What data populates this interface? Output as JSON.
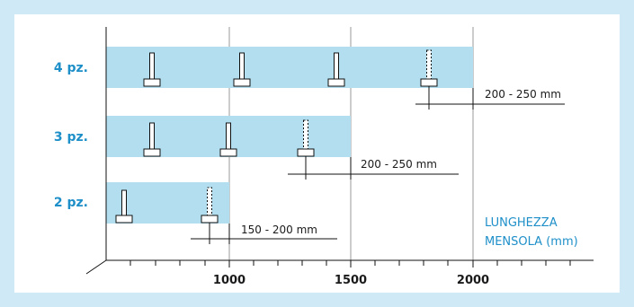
{
  "colors": {
    "background": "#cfe9f6",
    "band": "#b2def0",
    "accent": "#1e8fc8",
    "line": "#111111",
    "grid": "#9a9a9a"
  },
  "axis": {
    "title_line1": "LUNGHEZZA",
    "title_line2": "MENSOLA (mm)",
    "ticks": [
      "1000",
      "1500",
      "2000"
    ]
  },
  "rows": [
    {
      "label": "4 pz.",
      "shelf_length_mm": 2000,
      "brackets": 4,
      "dimension": "200 - 250 mm"
    },
    {
      "label": "3 pz.",
      "shelf_length_mm": 1500,
      "brackets": 3,
      "dimension": "200 - 250 mm"
    },
    {
      "label": "2 pz.",
      "shelf_length_mm": 1000,
      "brackets": 2,
      "dimension": "150 - 200 mm"
    }
  ]
}
